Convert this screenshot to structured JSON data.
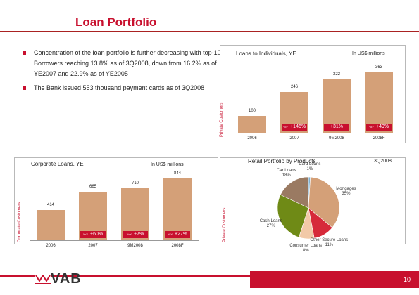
{
  "title": "Loan Portfolio",
  "bullets": [
    "Concentration of the loan portfolio is further decreasing with top-10 Borrowers reaching 13.8% as of 3Q2008, down from 16.2% as of YE2007 and 22.9% as of YE2005",
    "The Bank issued 553 thousand payment cards as of 3Q2008"
  ],
  "individuals_chart": {
    "side_label": "Private Customers",
    "title": "Loans to Individuals, YE",
    "unit": "In US$ millions",
    "chart_data": {
      "type": "bar",
      "categories": [
        "2006",
        "2007",
        "9M2008",
        "2008F"
      ],
      "values": [
        100,
        246,
        322,
        363
      ],
      "badges": [
        "+146%",
        "+31%",
        "+49%"
      ],
      "badge_prefixes": [
        "YoY",
        "",
        "YoY"
      ]
    }
  },
  "corporate_chart": {
    "side_label": "Corporate Customers",
    "title": "Corporate Loans, YE",
    "unit": "In US$ millions",
    "chart_data": {
      "type": "bar",
      "categories": [
        "2006",
        "2007",
        "9M2008",
        "2008F"
      ],
      "values": [
        414,
        665,
        710,
        844
      ],
      "badges": [
        "+60%",
        "+7%",
        "+27%"
      ],
      "badge_prefixes": [
        "YoY",
        "YoY",
        "YoY"
      ]
    }
  },
  "retail_chart": {
    "side_label": "Private Customers",
    "title": "Retail Portfolio by Products",
    "unit": "3Q2008",
    "chart_data": {
      "type": "pie",
      "labels": [
        "Card Loans",
        "Mortgages",
        "Other Secure Loans",
        "Consumer Loans",
        "Cash Loans",
        "Car Loans"
      ],
      "values": [
        1,
        35,
        11,
        8,
        27,
        18
      ],
      "value_labels": [
        "1%",
        "35%",
        "11%",
        "8%",
        "27%",
        "18%"
      ],
      "colors": [
        "#7fb0d0",
        "#d4a078",
        "#d62a3a",
        "#f2c9a8",
        "#6f8a16",
        "#9a7a62"
      ]
    }
  },
  "logo_text": "VAB",
  "page_number": "10"
}
